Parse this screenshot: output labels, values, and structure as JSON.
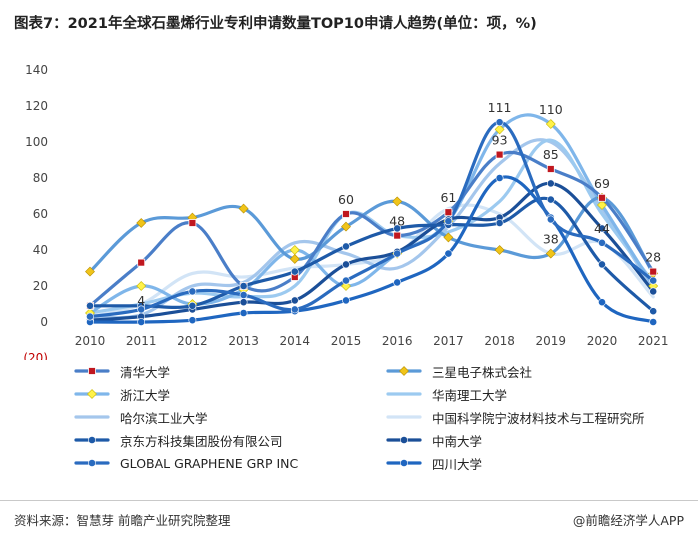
{
  "header": {
    "title": "图表7：2021年全球石墨烯行业专利申请数量TOP10申请人趋势(单位：项，%)"
  },
  "footer": {
    "source": "资料来源：智慧芽 前瞻产业研究院整理",
    "brand": "@前瞻经济学人APP"
  },
  "chart_data": {
    "type": "line",
    "title": "图表7：2021年全球石墨烯行业专利申请数量TOP10申请人趋势(单位：项，%)",
    "x": [
      "2010",
      "2011",
      "2012",
      "2013",
      "2014",
      "2015",
      "2016",
      "2017",
      "2018",
      "2019",
      "2020",
      "2021"
    ],
    "y_ticks": [
      "140",
      "120",
      "100",
      "80",
      "60",
      "40",
      "20",
      "0",
      "(20)"
    ],
    "ylim": [
      -20,
      140
    ],
    "grid": false,
    "legend_position": "bottom",
    "series": [
      {
        "name": "清华大学",
        "color": "#4a7ec8",
        "marker": "square",
        "values": [
          9,
          33,
          55,
          20,
          25,
          60,
          48,
          61,
          93,
          85,
          69,
          28
        ],
        "labels": {
          "5": "60",
          "6": "48",
          "7": "61",
          "8": "93",
          "9": "85",
          "10": "69",
          "11": "28"
        }
      },
      {
        "name": "三星电子株式会社",
        "color": "#5b9ad8",
        "marker": "diamond",
        "values": [
          28,
          55,
          58,
          63,
          35,
          53,
          67,
          47,
          40,
          38,
          69,
          27
        ]
      },
      {
        "name": "浙江大学",
        "color": "#7fb6ea",
        "marker": "diamond-light",
        "values": [
          5,
          20,
          10,
          18,
          40,
          20,
          38,
          56,
          107,
          110,
          65,
          20
        ],
        "labels": {
          "9": "110"
        }
      },
      {
        "name": "华南理工大学",
        "color": "#9ccaf0",
        "marker": "none",
        "values": [
          5,
          10,
          16,
          14,
          20,
          60,
          48,
          50,
          67,
          101,
          60,
          22
        ]
      },
      {
        "name": "哈尔滨工业大学",
        "color": "#a4c6ec",
        "marker": "none",
        "values": [
          3,
          4,
          20,
          22,
          44,
          38,
          30,
          53,
          88,
          100,
          63,
          18
        ],
        "labels": {
          "1": "4"
        }
      },
      {
        "name": "中国科学院宁波材料技术与工程研究所",
        "color": "#d2e4f6",
        "marker": "none",
        "values": [
          3,
          10,
          27,
          25,
          30,
          32,
          38,
          63,
          60,
          38,
          44,
          14
        ],
        "labels": {
          "9": "38",
          "10": "44"
        }
      },
      {
        "name": "京东方科技集团股份有限公司",
        "color": "#1e5aa8",
        "marker": "circle",
        "values": [
          9,
          9,
          9,
          20,
          28,
          42,
          52,
          54,
          55,
          68,
          32,
          6
        ]
      },
      {
        "name": "中南大学",
        "color": "#1b4f98",
        "marker": "circle",
        "values": [
          1,
          3,
          7,
          11,
          12,
          32,
          39,
          57,
          58,
          77,
          52,
          17
        ]
      },
      {
        "name": "GLOBAL GRAPHENE GRP INC",
        "color": "#2a6bbf",
        "marker": "circle",
        "values": [
          3,
          7,
          17,
          15,
          7,
          23,
          38,
          56,
          111,
          57,
          44,
          23
        ],
        "labels": {
          "8": "111"
        }
      },
      {
        "name": "四川大学",
        "color": "#1f66c0",
        "marker": "circle",
        "values": [
          0,
          0,
          1,
          5,
          6,
          12,
          22,
          38,
          80,
          58,
          11,
          0
        ]
      }
    ]
  }
}
